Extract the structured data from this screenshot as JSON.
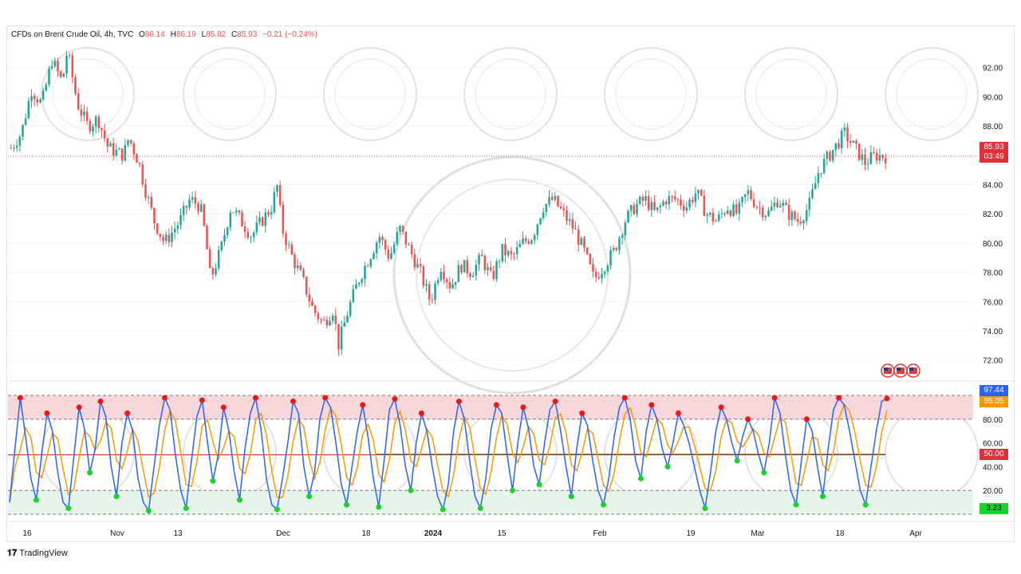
{
  "legend": {
    "title": "CFDs on Brent Crude Oil, 4h, TVC",
    "open_label": "O",
    "open": "86.14",
    "high_label": "H",
    "high": "86.19",
    "low_label": "L",
    "low": "85.82",
    "close_label": "C",
    "close": "85.93",
    "change": "−0.21 (−0.24%)"
  },
  "footer": {
    "brand": "TradingView"
  },
  "tags": {
    "price": "85.93",
    "countdown": "03:49",
    "osc_k": "97.44",
    "osc_d": "95.05",
    "osc_mid": "50.00",
    "osc_low": "3.23"
  },
  "colors": {
    "up": "#26a69a",
    "down": "#ef5350",
    "k_line": "#2962ff",
    "d_line": "#ff9800",
    "overbought_zone": "#f8d7da",
    "oversold_zone": "#e6f4ea",
    "dot_high": "#e8191a",
    "dot_low": "#19d32a",
    "price_tag": "#e0303a"
  },
  "chart_data": [
    {
      "type": "candlestick",
      "title": "CFDs on Brent Crude Oil, 4h, TVC",
      "x_ticks": [
        "16",
        "Nov",
        "13",
        "Dec",
        "18",
        "2024",
        "15",
        "Feb",
        "19",
        "Mar",
        "18",
        "Apr"
      ],
      "y_ticks": [
        72,
        74,
        76,
        78,
        80,
        82,
        84,
        86,
        88,
        90,
        92
      ],
      "ylim": [
        71,
        94
      ],
      "last_price": 85.93,
      "close_path": [
        {
          "x": 0,
          "y": 86.5
        },
        {
          "x": 2,
          "y": 87.5
        },
        {
          "x": 4,
          "y": 90.5
        },
        {
          "x": 6,
          "y": 89.5
        },
        {
          "x": 8,
          "y": 92.5
        },
        {
          "x": 10,
          "y": 91.0
        },
        {
          "x": 11,
          "y": 93.2
        },
        {
          "x": 13,
          "y": 89.5
        },
        {
          "x": 15,
          "y": 88.0
        },
        {
          "x": 17,
          "y": 88.5
        },
        {
          "x": 19,
          "y": 86.5
        },
        {
          "x": 22,
          "y": 86.0
        },
        {
          "x": 23,
          "y": 87.2
        },
        {
          "x": 25,
          "y": 85.5
        },
        {
          "x": 26,
          "y": 84.0
        },
        {
          "x": 28,
          "y": 81.5
        },
        {
          "x": 30,
          "y": 80.0
        },
        {
          "x": 33,
          "y": 81.5
        },
        {
          "x": 35,
          "y": 83.0
        },
        {
          "x": 37,
          "y": 82.5
        },
        {
          "x": 38,
          "y": 80.5
        },
        {
          "x": 39,
          "y": 77.5
        },
        {
          "x": 41,
          "y": 79.5
        },
        {
          "x": 43,
          "y": 82.5
        },
        {
          "x": 45,
          "y": 81.5
        },
        {
          "x": 47,
          "y": 80.5
        },
        {
          "x": 49,
          "y": 81.5
        },
        {
          "x": 51,
          "y": 82.5
        },
        {
          "x": 52,
          "y": 84.0
        },
        {
          "x": 53,
          "y": 81.0
        },
        {
          "x": 55,
          "y": 79.0
        },
        {
          "x": 57,
          "y": 77.5
        },
        {
          "x": 59,
          "y": 75.5
        },
        {
          "x": 61,
          "y": 74.5
        },
        {
          "x": 63,
          "y": 75.5
        },
        {
          "x": 64,
          "y": 73.0
        },
        {
          "x": 66,
          "y": 75.5
        },
        {
          "x": 68,
          "y": 77.5
        },
        {
          "x": 70,
          "y": 79.0
        },
        {
          "x": 72,
          "y": 80.5
        },
        {
          "x": 74,
          "y": 79.0
        },
        {
          "x": 76,
          "y": 81.0
        },
        {
          "x": 78,
          "y": 79.5
        },
        {
          "x": 80,
          "y": 78.0
        },
        {
          "x": 82,
          "y": 76.0
        },
        {
          "x": 84,
          "y": 78.5
        },
        {
          "x": 86,
          "y": 77.0
        },
        {
          "x": 88,
          "y": 78.5
        },
        {
          "x": 90,
          "y": 78.0
        },
        {
          "x": 92,
          "y": 79.0
        },
        {
          "x": 94,
          "y": 77.5
        },
        {
          "x": 96,
          "y": 79.5
        },
        {
          "x": 98,
          "y": 79.0
        },
        {
          "x": 100,
          "y": 80.0
        },
        {
          "x": 102,
          "y": 80.5
        },
        {
          "x": 104,
          "y": 82.5
        },
        {
          "x": 106,
          "y": 83.0
        },
        {
          "x": 108,
          "y": 82.0
        },
        {
          "x": 110,
          "y": 81.0
        },
        {
          "x": 112,
          "y": 79.5
        },
        {
          "x": 114,
          "y": 77.5
        },
        {
          "x": 116,
          "y": 78.5
        },
        {
          "x": 118,
          "y": 79.5
        },
        {
          "x": 120,
          "y": 81.5
        },
        {
          "x": 122,
          "y": 82.5
        },
        {
          "x": 124,
          "y": 83.0
        },
        {
          "x": 126,
          "y": 82.0
        },
        {
          "x": 128,
          "y": 83.0
        },
        {
          "x": 130,
          "y": 83.0
        },
        {
          "x": 132,
          "y": 82.5
        },
        {
          "x": 134,
          "y": 83.5
        },
        {
          "x": 136,
          "y": 82.0
        },
        {
          "x": 138,
          "y": 81.5
        },
        {
          "x": 140,
          "y": 82.5
        },
        {
          "x": 142,
          "y": 82.0
        },
        {
          "x": 144,
          "y": 83.5
        },
        {
          "x": 146,
          "y": 82.5
        },
        {
          "x": 148,
          "y": 82.0
        },
        {
          "x": 150,
          "y": 83.0
        },
        {
          "x": 152,
          "y": 82.0
        },
        {
          "x": 154,
          "y": 81.5
        },
        {
          "x": 156,
          "y": 82.5
        },
        {
          "x": 158,
          "y": 85.0
        },
        {
          "x": 160,
          "y": 86.0
        },
        {
          "x": 162,
          "y": 87.0
        },
        {
          "x": 163,
          "y": 87.5
        },
        {
          "x": 165,
          "y": 86.5
        },
        {
          "x": 167,
          "y": 85.5
        },
        {
          "x": 169,
          "y": 86.0
        },
        {
          "x": 171,
          "y": 85.93
        }
      ]
    },
    {
      "type": "line",
      "title": "Stochastic oscillator",
      "y_ticks": [
        20,
        40,
        60,
        80
      ],
      "ylim": [
        0,
        100
      ],
      "levels": {
        "overbought": 80,
        "oversold": 20,
        "mid": 50
      },
      "series": [
        {
          "values": [
            10,
            55,
            98,
            65,
            30,
            12,
            50,
            85,
            70,
            35,
            10,
            5,
            48,
            90,
            72,
            35,
            55,
            95,
            82,
            40,
            15,
            60,
            85,
            70,
            30,
            10,
            3,
            40,
            75,
            98,
            88,
            50,
            20,
            5,
            45,
            82,
            96,
            60,
            28,
            50,
            90,
            70,
            35,
            12,
            55,
            85,
            98,
            72,
            30,
            8,
            4,
            30,
            60,
            95,
            85,
            40,
            15,
            35,
            80,
            98,
            90,
            60,
            25,
            8,
            40,
            70,
            92,
            65,
            30,
            6,
            45,
            88,
            97,
            75,
            40,
            20,
            60,
            85,
            70,
            40,
            15,
            4,
            25,
            70,
            95,
            80,
            45,
            15,
            5,
            30,
            72,
            92,
            85,
            50,
            20,
            60,
            90,
            72,
            40,
            25,
            60,
            88,
            95,
            70,
            40,
            15,
            55,
            85,
            75,
            45,
            20,
            8,
            30,
            65,
            90,
            98,
            80,
            45,
            30,
            70,
            92,
            80,
            55,
            40,
            60,
            85,
            75,
            60,
            40,
            20,
            5,
            35,
            70,
            90,
            80,
            60,
            45,
            65,
            80,
            70,
            50,
            35,
            60,
            98,
            85,
            50,
            20,
            8,
            45,
            80,
            70,
            40,
            15,
            55,
            88,
            98,
            92,
            70,
            45,
            20,
            8,
            40,
            70,
            95,
            97.44
          ],
          "color": "#2962ff"
        }
      ],
      "last_values": [
        97.44,
        95.05
      ]
    }
  ]
}
